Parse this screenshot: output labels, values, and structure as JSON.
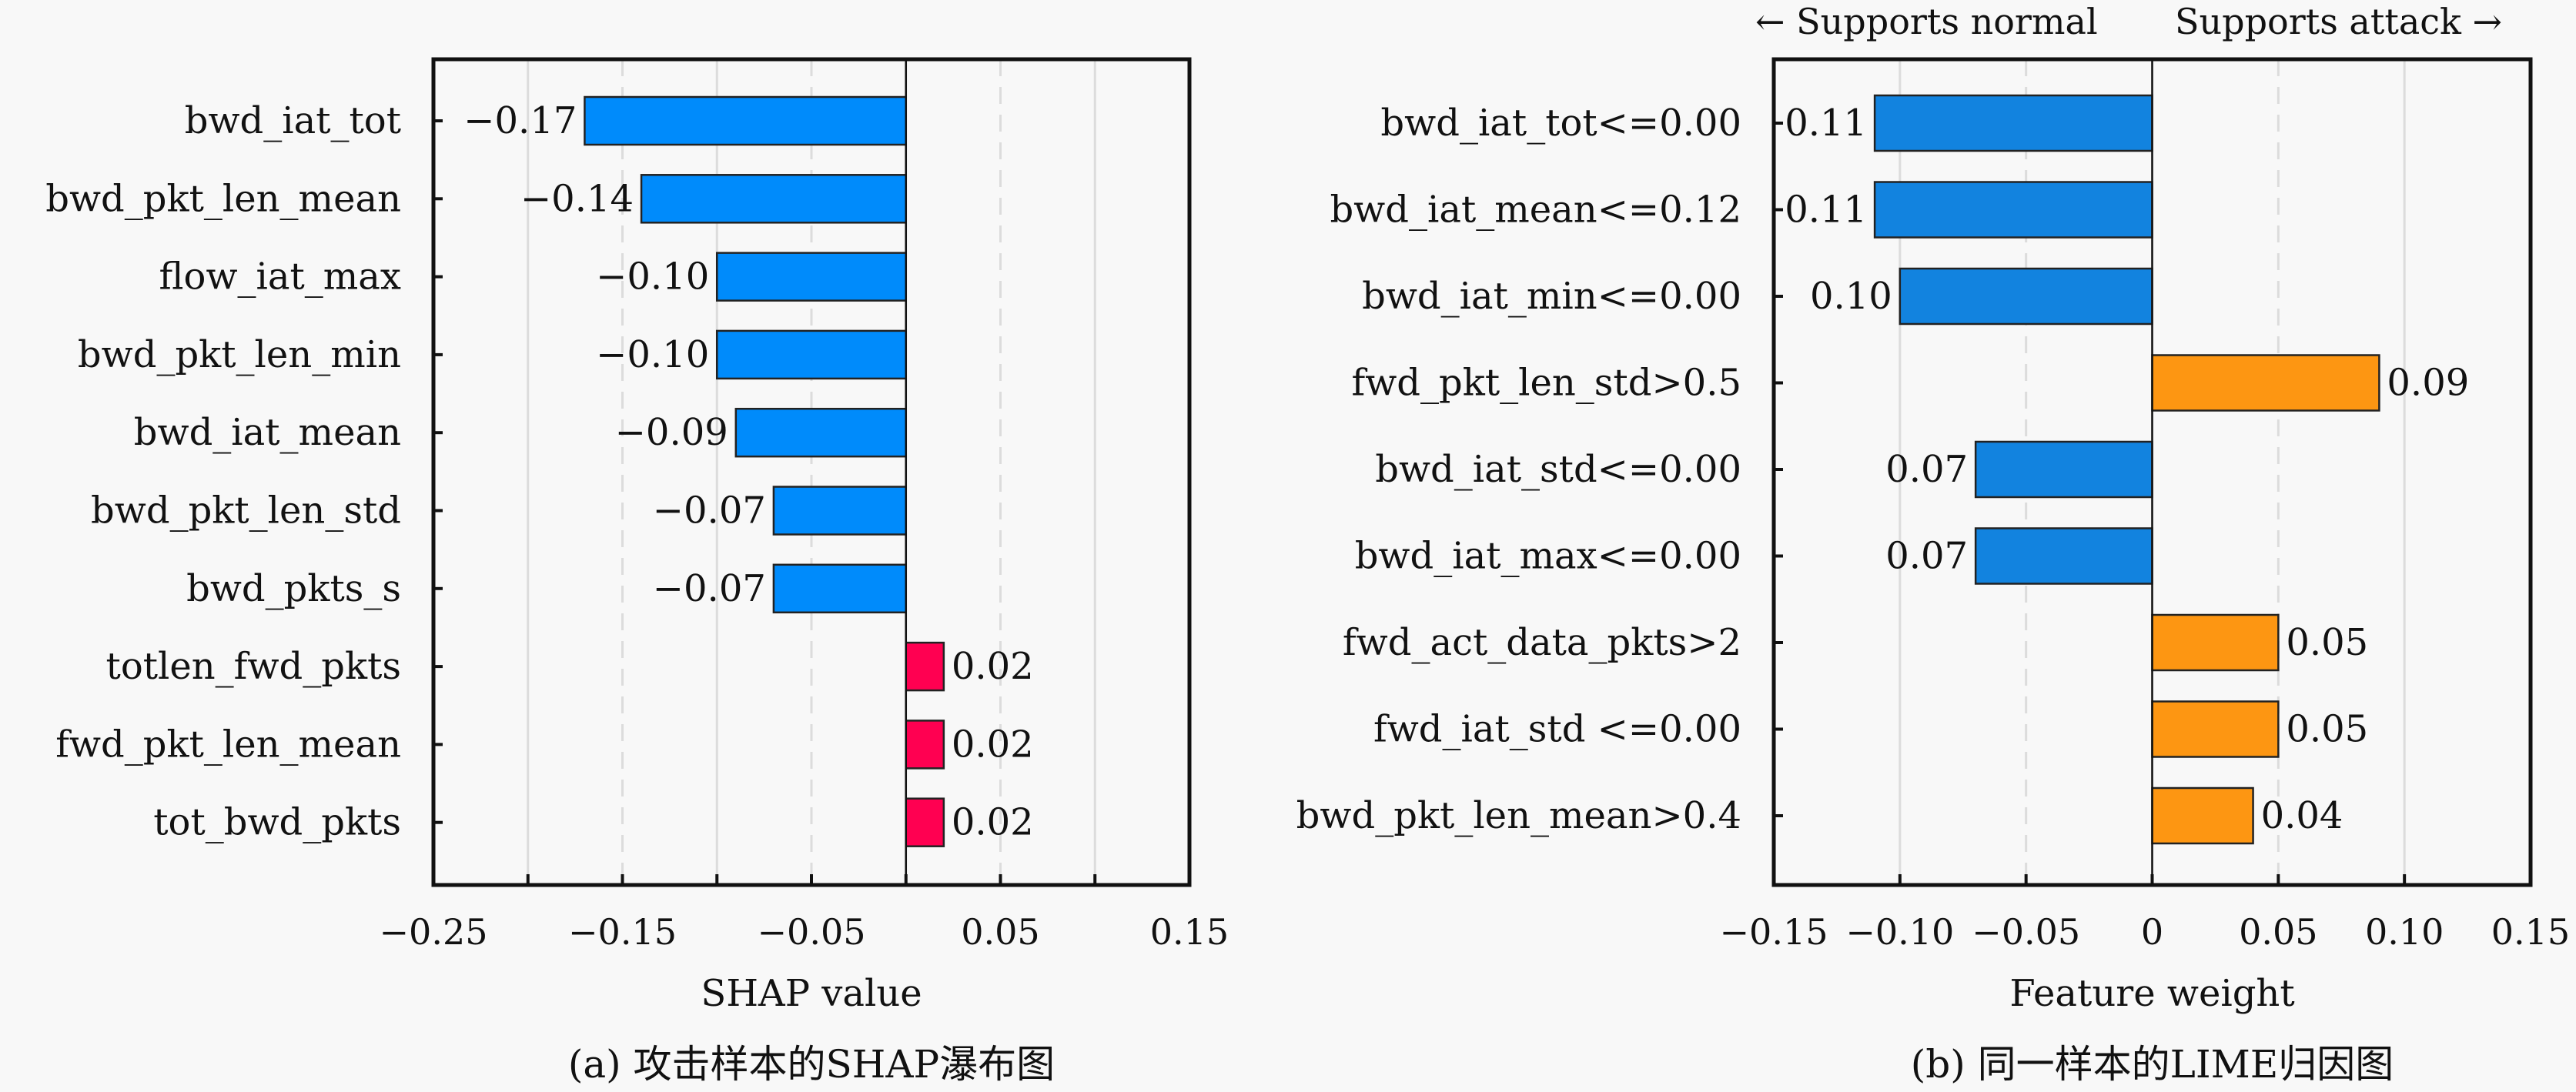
{
  "legend": {
    "normal_label": "← Supports normal",
    "attack_label": "Supports attack →",
    "normal_color": "#1a86e0",
    "attack_color": "#ff9512"
  },
  "chart_data": [
    {
      "type": "bar",
      "orientation": "horizontal",
      "title": "",
      "caption": "(a) 攻击样本的SHAP瀑布图",
      "xlabel": "SHAP value",
      "ylabel": "",
      "xlim": [
        -0.25,
        0.15
      ],
      "xticks": [
        -0.25,
        -0.15,
        -0.05,
        0.05,
        0.15
      ],
      "xtick_labels": [
        "−0.25",
        "−0.15",
        "−0.05",
        "0.05",
        "0.15"
      ],
      "minor_ticks": [
        -0.2,
        -0.1,
        0,
        0.1
      ],
      "grid": true,
      "categories": [
        "bwd_iat_tot",
        "bwd_pkt_len_mean",
        "flow_iat_max",
        "bwd_pkt_len_min",
        "bwd_iat_mean",
        "bwd_pkt_len_std",
        "bwd_pkts_s",
        "totlen_fwd_pkts",
        "fwd_pkt_len_mean",
        "tot_bwd_pkts"
      ],
      "values": [
        -0.17,
        -0.14,
        -0.1,
        -0.1,
        -0.09,
        -0.07,
        -0.07,
        0.02,
        0.02,
        0.02
      ],
      "value_labels": [
        "−0.17",
        "−0.14",
        "−0.10",
        "−0.10",
        "−0.09",
        "−0.07",
        "−0.07",
        "0.02",
        "0.02",
        "0.02"
      ],
      "colors": {
        "negative": "#008bfb",
        "positive": "#ff0051"
      }
    },
    {
      "type": "bar",
      "orientation": "horizontal",
      "title": "",
      "caption": "(b) 同一样本的LIME归因图",
      "xlabel": "Feature weight",
      "ylabel": "",
      "xlim": [
        -0.15,
        0.15
      ],
      "xticks": [
        -0.15,
        -0.1,
        -0.05,
        0,
        0.05,
        0.1,
        0.15
      ],
      "xtick_labels": [
        "−0.15",
        "−0.10",
        "−0.05",
        "0",
        "0.05",
        "0.10",
        "0.15"
      ],
      "grid": true,
      "legend_position": "top-right",
      "categories": [
        "bwd_iat_tot<=0.00",
        "bwd_iat_mean<=0.12",
        "bwd_iat_min<=0.00",
        "fwd_pkt_len_std>0.5",
        "bwd_iat_std<=0.00",
        "bwd_iat_max<=0.00",
        "fwd_act_data_pkts>2",
        "fwd_iat_std <=0.00",
        "bwd_pkt_len_mean>0.4"
      ],
      "values": [
        -0.11,
        -0.11,
        -0.1,
        0.09,
        -0.07,
        -0.07,
        0.05,
        0.05,
        0.04
      ],
      "value_labels": [
        "0.11",
        "0.11",
        "0.10",
        "0.09",
        "0.07",
        "0.07",
        "0.05",
        "0.05",
        "0.04"
      ],
      "colors": {
        "negative": "#1283df",
        "positive": "#fd9612"
      }
    }
  ]
}
